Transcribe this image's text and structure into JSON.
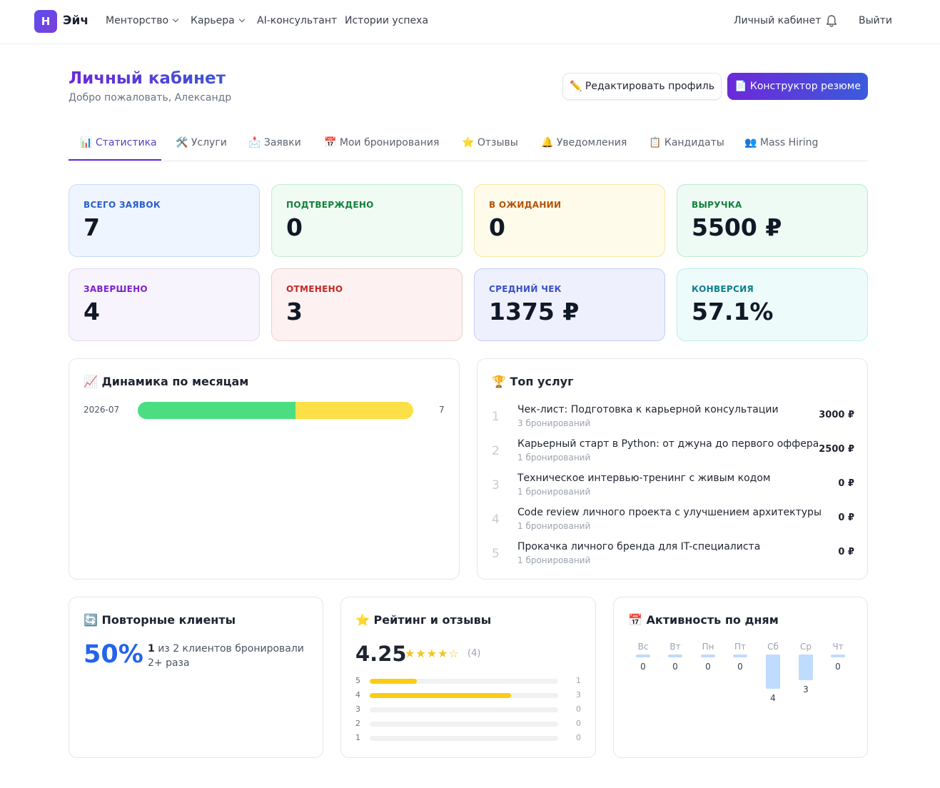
{
  "nav": {
    "logo_letter": "H",
    "brand": "Эйч",
    "items": [
      "Менторство",
      "Карьера",
      "AI-консультант",
      "Истории успеха"
    ],
    "cabinet": "Личный кабинет",
    "logout": "Выйти"
  },
  "header": {
    "title": "Личный кабинет",
    "subtitle": "Добро пожаловать, Александр",
    "edit_button": "✏️ Редактировать профиль",
    "resume_button": "📄 Конструктор резюме"
  },
  "tabs": [
    "📊 Статистика",
    "🛠️ Услуги",
    "📩 Заявки",
    "📅 Мои бронирования",
    "⭐ Отзывы",
    "🔔 Уведомления",
    "📋 Кандидаты",
    "👥 Mass Hiring"
  ],
  "stats": [
    {
      "label": "ВСЕГО ЗАЯВОК",
      "value": "7"
    },
    {
      "label": "ПОДТВЕРЖДЕНО",
      "value": "0"
    },
    {
      "label": "В ОЖИДАНИИ",
      "value": "0"
    },
    {
      "label": "ВЫРУЧКА",
      "value": "5500 ₽"
    },
    {
      "label": "ЗАВЕРШЕНО",
      "value": "4"
    },
    {
      "label": "ОТМЕНЕНО",
      "value": "3"
    },
    {
      "label": "СРЕДНИЙ ЧЕК",
      "value": "1375 ₽"
    },
    {
      "label": "КОНВЕРСИЯ",
      "value": "57.1%"
    }
  ],
  "monthly": {
    "title": "📈 Динамика по месяцам",
    "rows": [
      {
        "month": "2026-07",
        "count": "7",
        "completed": 4,
        "cancelled": 3
      }
    ],
    "colors": {
      "completed": "#4ade80",
      "cancelled": "#fde047"
    }
  },
  "top_services": {
    "title": "🏆 Топ услуг",
    "items": [
      {
        "rank": "1",
        "name": "Чек-лист: Подготовка к карьерной консультации",
        "bookings": "3 бронирований",
        "price": "3000 ₽"
      },
      {
        "rank": "2",
        "name": "Карьерный старт в Python: от джуна до первого оффера",
        "bookings": "1 бронирований",
        "price": "2500 ₽"
      },
      {
        "rank": "3",
        "name": "Техническое интервью-тренинг с живым кодом",
        "bookings": "1 бронирований",
        "price": "0 ₽"
      },
      {
        "rank": "4",
        "name": "Code review личного проекта с улучшением архитектуры",
        "bookings": "1 бронирований",
        "price": "0 ₽"
      },
      {
        "rank": "5",
        "name": "Прокачка личного бренда для IT-специалиста",
        "bookings": "1 бронирований",
        "price": "0 ₽"
      }
    ]
  },
  "repeat": {
    "title": "🔄 Повторные клиенты",
    "value": "50%",
    "count": "1",
    "text": " из 2 клиентов бронировали 2+ раза"
  },
  "rating": {
    "title": "⭐ Рейтинг и отзывы",
    "value": "4.25",
    "stars": "★★★★☆",
    "reviews": "(4)",
    "bars": [
      {
        "star": "5",
        "count": "1",
        "fraction": 0.25
      },
      {
        "star": "4",
        "count": "3",
        "fraction": 0.75
      },
      {
        "star": "3",
        "count": "0",
        "fraction": 0
      },
      {
        "star": "2",
        "count": "0",
        "fraction": 0
      },
      {
        "star": "1",
        "count": "0",
        "fraction": 0
      }
    ]
  },
  "activity": {
    "title": "📅 Активность по дням",
    "days": [
      {
        "day": "Вс",
        "value": "0"
      },
      {
        "day": "Вт",
        "value": "0"
      },
      {
        "day": "Пн",
        "value": "0"
      },
      {
        "day": "Пт",
        "value": "0"
      },
      {
        "day": "Сб",
        "value": "4"
      },
      {
        "day": "Ср",
        "value": "3"
      },
      {
        "day": "Чт",
        "value": "0"
      }
    ]
  }
}
